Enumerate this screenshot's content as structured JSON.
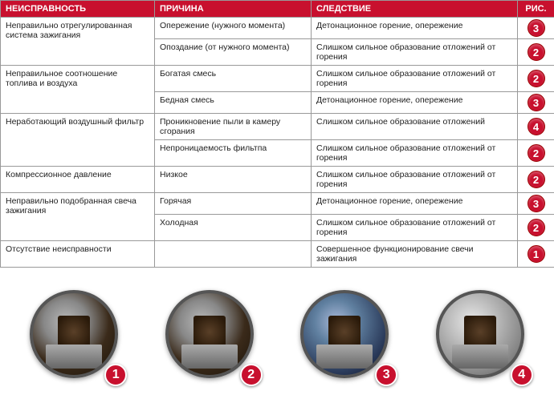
{
  "headers": {
    "fault": "НЕИСПРАВНОСТЬ",
    "cause": "ПРИЧИНА",
    "effect": "СЛЕДСТВИЕ",
    "fig": "РИС."
  },
  "rows": [
    {
      "fault": "Неправильно отрегулированная система зажигания",
      "fault_rowspan": 2,
      "cause": "Опережение (нужного момента)",
      "effect": "Детонационное горение, опережение",
      "fig": "3"
    },
    {
      "cause": "Опоздание (от нужного момента)",
      "effect": "Слишком сильное образование отложений от горения",
      "fig": "2"
    },
    {
      "fault": "Неправильное соотношение топлива и воздуха",
      "fault_rowspan": 2,
      "cause": "Богатая смесь",
      "effect": "Слишком сильное образование отложений от горения",
      "fig": "2"
    },
    {
      "cause": "Бедная смесь",
      "effect": "Детонационное горение, опережение",
      "fig": "3"
    },
    {
      "fault": "Неработающий воздушный фильтр",
      "fault_rowspan": 2,
      "cause": "Проникновение пыли в камеру сгорания",
      "effect": "Слишком сильное образование отложений",
      "fig": "4"
    },
    {
      "cause": "Непроницаемость фильтпа",
      "effect": "Слишком сильное образование отложений от горения",
      "fig": "2"
    },
    {
      "fault": "Компрессионное давление",
      "fault_rowspan": 1,
      "cause": "Низкое",
      "effect": "Слишком сильное образование отложений от горения",
      "fig": "2"
    },
    {
      "fault": "Неправильно подобранная свеча зажигания",
      "fault_rowspan": 2,
      "cause": "Горячая",
      "effect": "Детонационное горение, опережение",
      "fig": "3"
    },
    {
      "cause": "Холодная",
      "effect": "Слишком сильное образование отложений от горения",
      "fig": "2"
    },
    {
      "fault": "Отсутствие неисправности",
      "fault_rowspan": 1,
      "cause": "",
      "effect": "Совершенное функционирование свечи зажигания",
      "fig": "1"
    }
  ],
  "plugs": [
    {
      "num": "1",
      "variant": "dark"
    },
    {
      "num": "2",
      "variant": "dark"
    },
    {
      "num": "3",
      "variant": "blue"
    },
    {
      "num": "4",
      "variant": "silver"
    }
  ],
  "colors": {
    "header_bg": "#c8102e",
    "header_fg": "#ffffff",
    "border": "#999999",
    "badge_bg": "#c8102e"
  }
}
